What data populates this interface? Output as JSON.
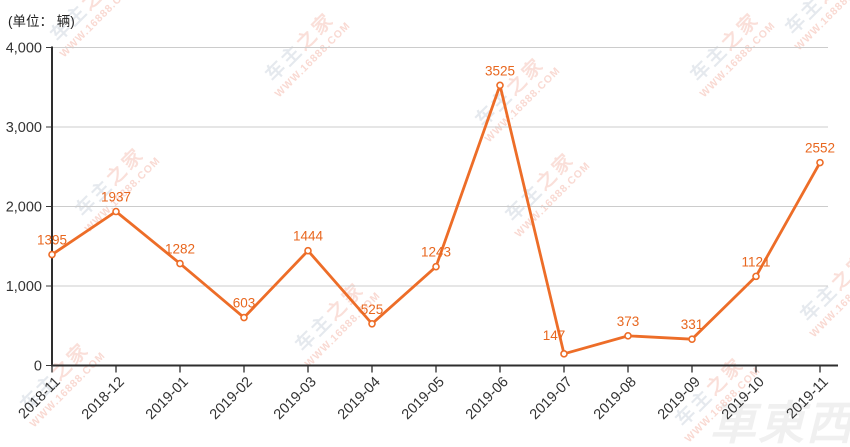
{
  "title": "(单位： 辆)",
  "watermark": {
    "part1": "车主",
    "part2": "之家",
    "url": "WWW.16888.COM"
  },
  "logo_watermark": "車東西",
  "chart_data": {
    "type": "line",
    "title": "(单位： 辆)",
    "xlabel": "",
    "ylabel": "单位：辆",
    "categories": [
      "2018-11",
      "2018-12",
      "2019-01",
      "2019-02",
      "2019-03",
      "2019-04",
      "2019-05",
      "2019-06",
      "2019-07",
      "2019-08",
      "2019-09",
      "2019-10",
      "2019-11"
    ],
    "values": [
      1395,
      1937,
      1282,
      603,
      1444,
      525,
      1243,
      3525,
      147,
      373,
      331,
      1121,
      2552
    ],
    "ylim": [
      0,
      4000
    ],
    "yticks": [
      0,
      1000,
      2000,
      3000,
      4000
    ],
    "ytick_labels": [
      "0",
      "1,000",
      "2,000",
      "3,000",
      "4,000"
    ],
    "grid": true,
    "legend": "none",
    "line_color": "#ED6D28",
    "label_color": "#E8671F",
    "axis_color": "#3a3a3a",
    "grid_color": "#cccccc"
  }
}
